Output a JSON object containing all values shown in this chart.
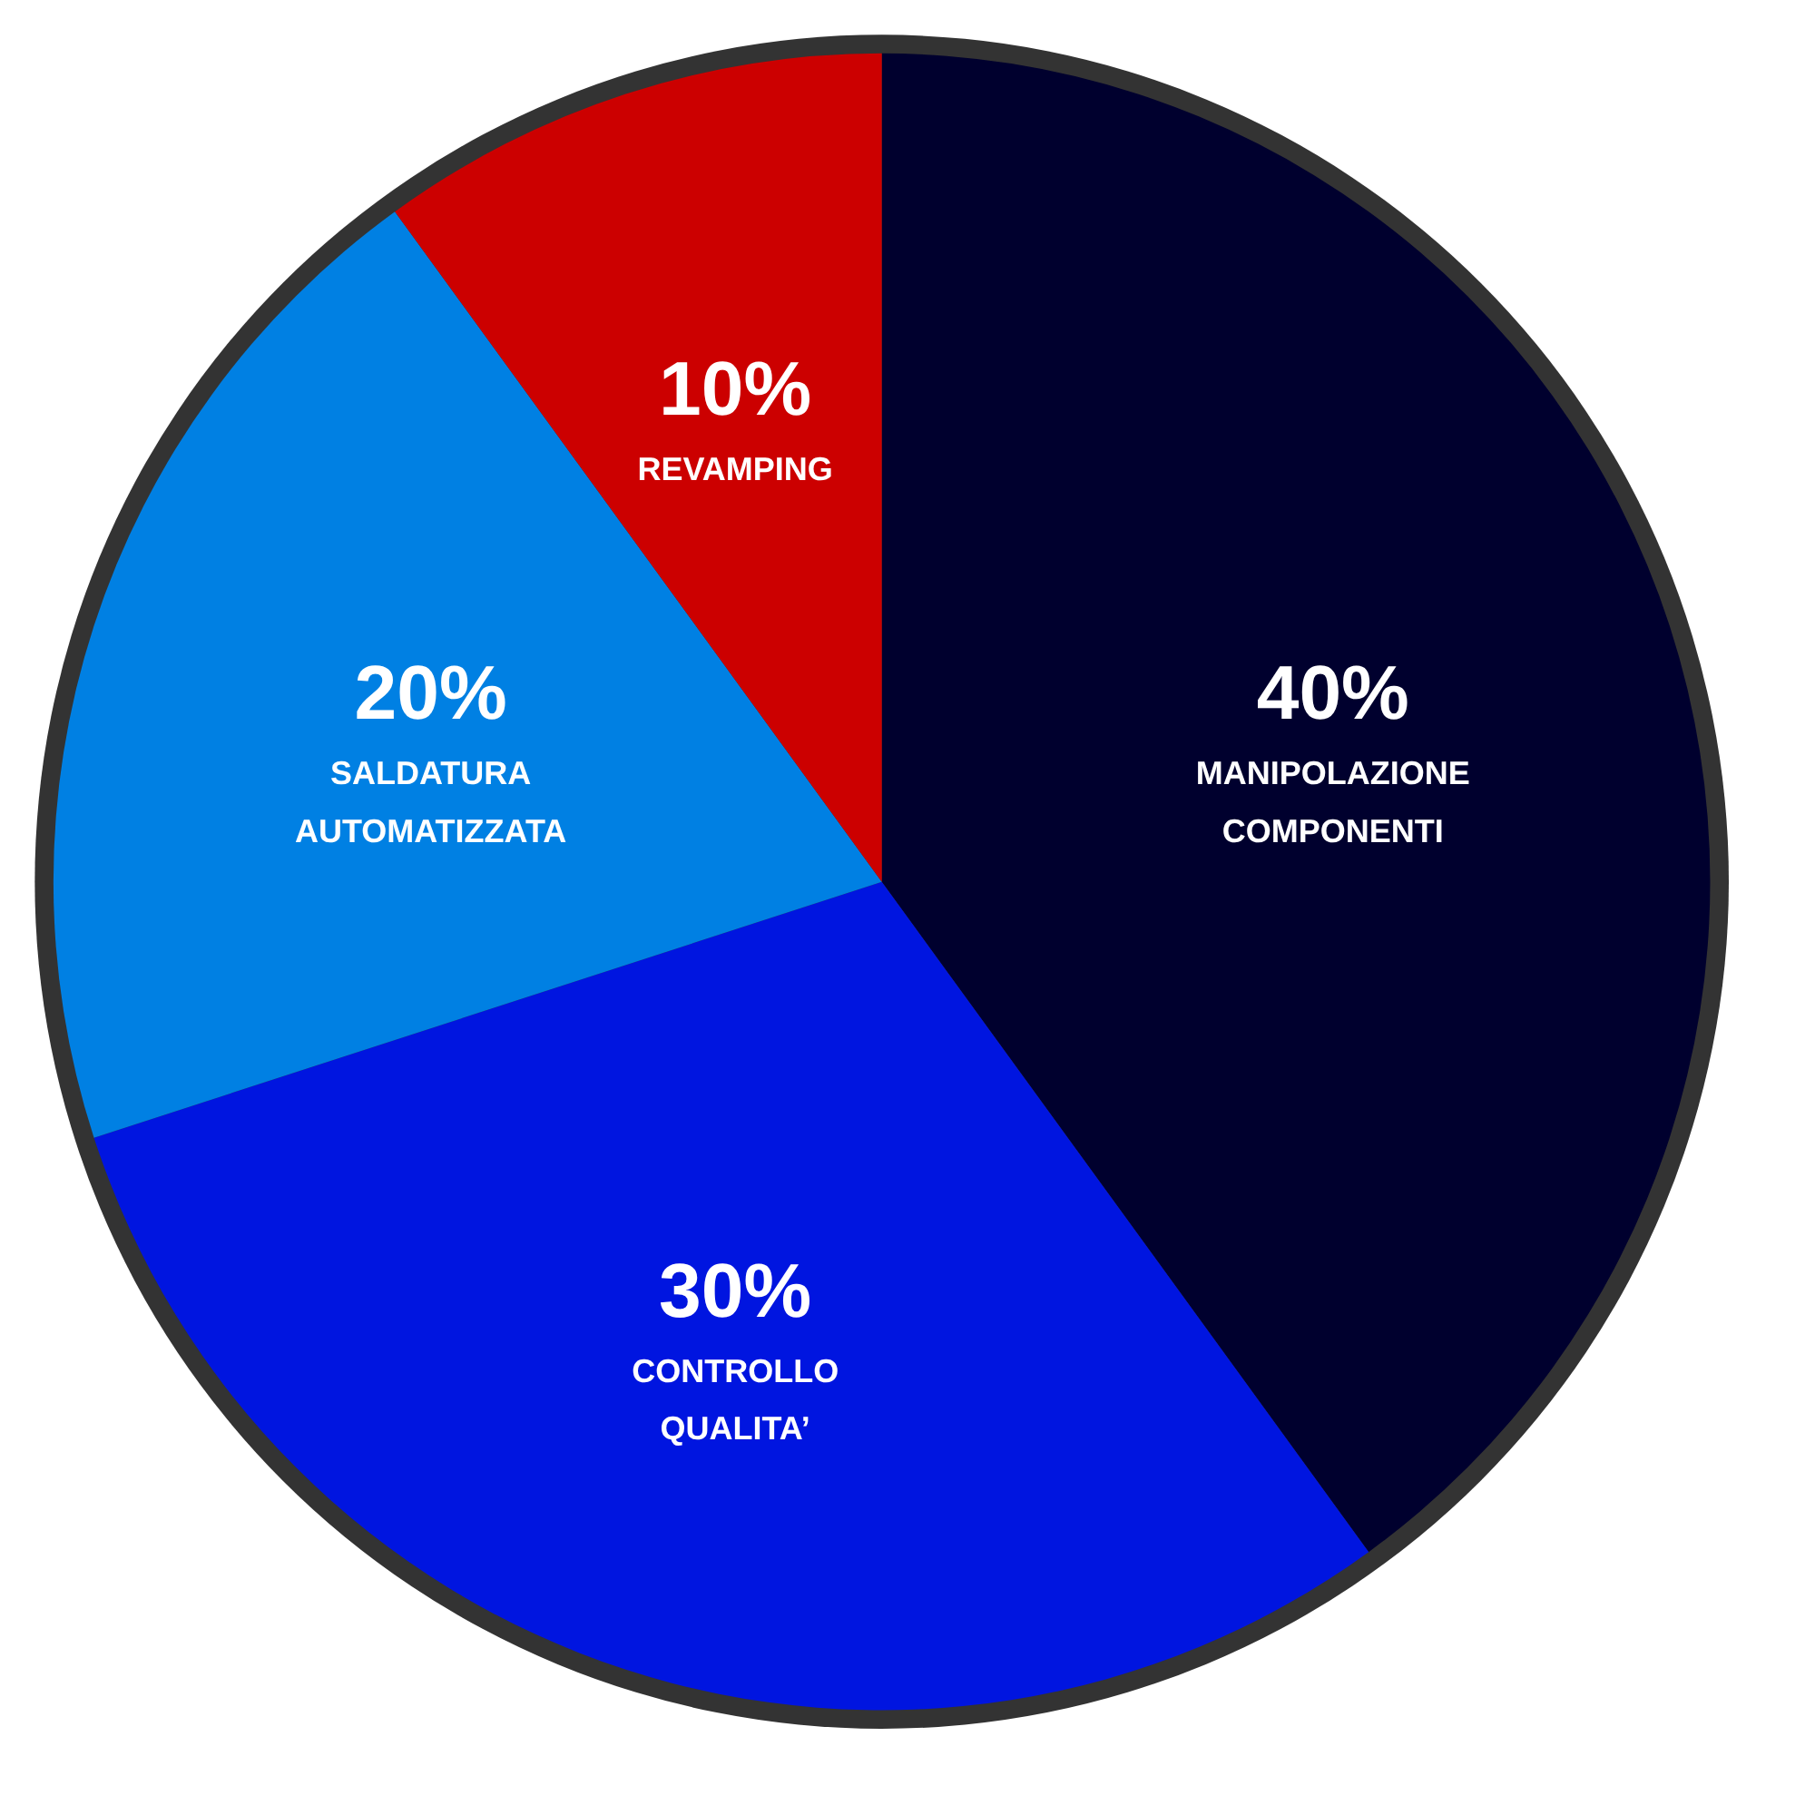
{
  "chart_data": {
    "type": "pie",
    "categories": [
      "MANIPOLAZIONE COMPONENTI",
      "CONTROLLO QUALITA’",
      "SALDATURA AUTOMATIZZATA",
      "REVAMPING"
    ],
    "values": [
      40,
      30,
      20,
      10
    ],
    "colors": [
      "#00002e",
      "#0015e0",
      "#0080e3",
      "#cc0000"
    ],
    "value_labels": [
      "40%",
      "30%",
      "20%",
      "10%"
    ]
  }
}
